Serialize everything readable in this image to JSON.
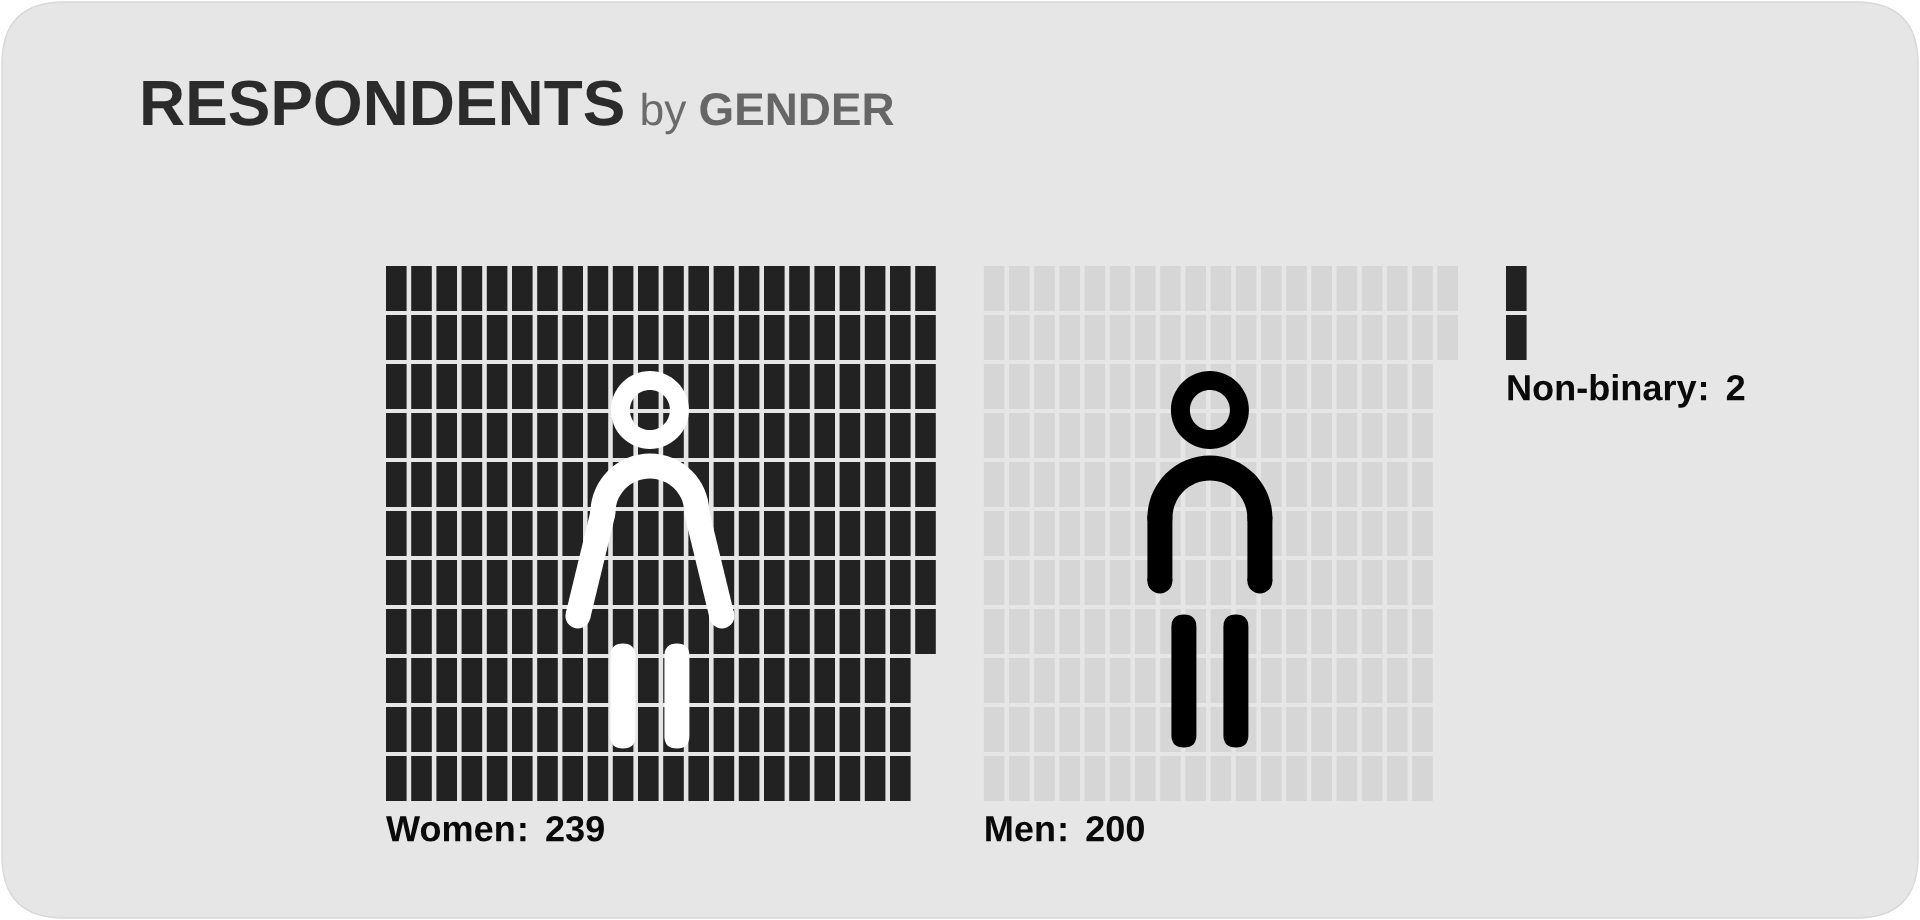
{
  "chart_data": {
    "type": "other",
    "title": "RESPONDENTS by GENDER",
    "categories": [
      "Women",
      "Men",
      "Non-binary"
    ],
    "values": [
      239,
      200,
      2
    ],
    "colors": [
      "#222222",
      "#d6d6d6",
      "#222222"
    ],
    "data_labels": true,
    "annotations": [
      ":",
      ":",
      ":"
    ]
  }
}
